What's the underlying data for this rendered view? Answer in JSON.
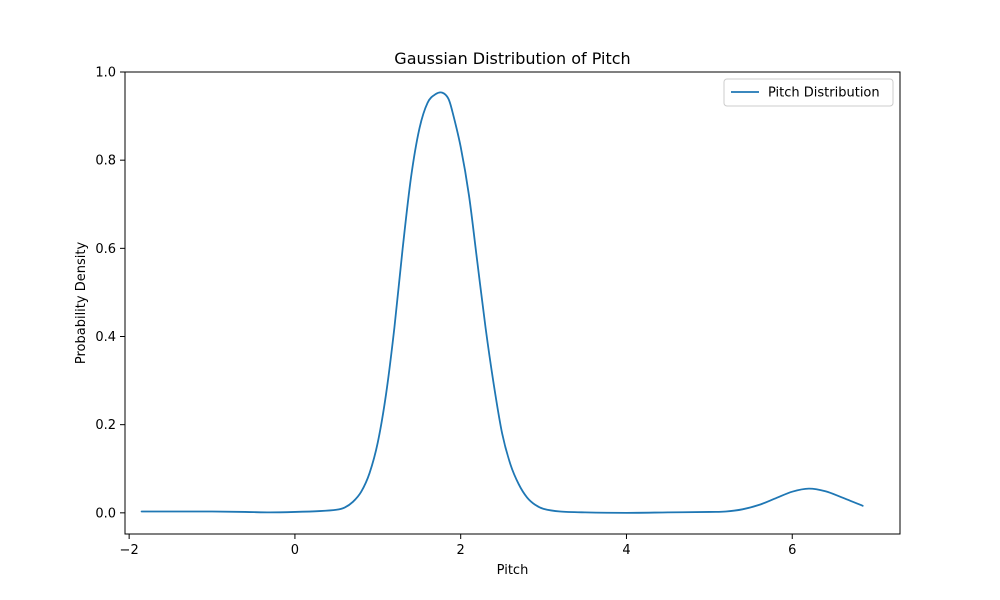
{
  "chart_data": {
    "type": "line",
    "title": "Gaussian Distribution of Pitch",
    "xlabel": "Pitch",
    "ylabel": "Probability Density",
    "xlim": [
      -2.05,
      7.3
    ],
    "ylim": [
      -0.048,
      1.0
    ],
    "xticks": [
      -2,
      0,
      2,
      4,
      6
    ],
    "xtick_labels": [
      "−2",
      "0",
      "2",
      "4",
      "6"
    ],
    "yticks": [
      0.0,
      0.2,
      0.4,
      0.6,
      0.8,
      1.0
    ],
    "ytick_labels": [
      "0.0",
      "0.2",
      "0.4",
      "0.6",
      "0.8",
      "1.0"
    ],
    "grid": false,
    "legend_position": "top-right",
    "series": [
      {
        "name": "Pitch Distribution",
        "color": "#1f77b4",
        "x": [
          -1.85,
          -1.5,
          -1.0,
          -0.6,
          -0.3,
          0.0,
          0.3,
          0.5,
          0.6,
          0.7,
          0.8,
          0.9,
          1.0,
          1.1,
          1.2,
          1.3,
          1.4,
          1.5,
          1.6,
          1.7,
          1.78,
          1.85,
          1.9,
          2.0,
          2.1,
          2.2,
          2.3,
          2.4,
          2.5,
          2.6,
          2.7,
          2.8,
          2.9,
          3.0,
          3.2,
          3.5,
          4.0,
          4.5,
          5.0,
          5.2,
          5.4,
          5.6,
          5.8,
          6.0,
          6.2,
          6.4,
          6.6,
          6.85
        ],
        "y": [
          0.003,
          0.003,
          0.003,
          0.002,
          0.001,
          0.002,
          0.004,
          0.007,
          0.012,
          0.025,
          0.048,
          0.09,
          0.16,
          0.27,
          0.42,
          0.6,
          0.76,
          0.87,
          0.93,
          0.95,
          0.953,
          0.94,
          0.91,
          0.83,
          0.72,
          0.57,
          0.42,
          0.29,
          0.18,
          0.11,
          0.065,
          0.035,
          0.018,
          0.009,
          0.003,
          0.001,
          0.0,
          0.001,
          0.002,
          0.003,
          0.008,
          0.018,
          0.033,
          0.048,
          0.055,
          0.049,
          0.035,
          0.016
        ]
      }
    ]
  }
}
